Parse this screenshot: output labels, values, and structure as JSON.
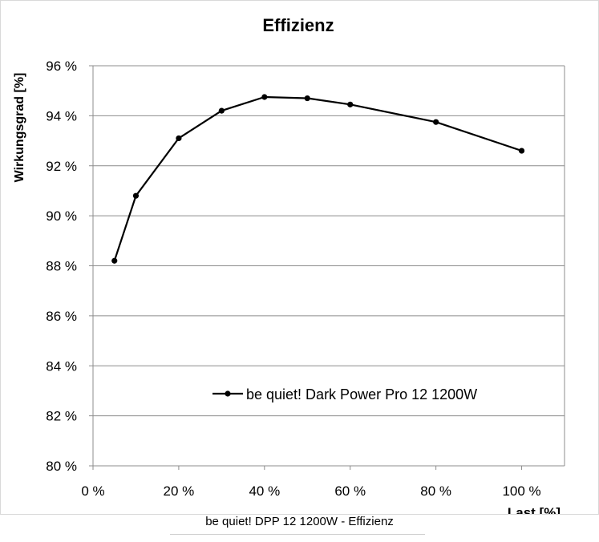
{
  "chart_data": {
    "type": "line",
    "title": "Effizienz",
    "xlabel": "Last [%]",
    "ylabel": "Wirkungsgrad [%]",
    "x_ticks": [
      "0 %",
      "20 %",
      "40 %",
      "60 %",
      "80 %",
      "100 %"
    ],
    "x_tick_values": [
      0,
      20,
      40,
      60,
      80,
      100
    ],
    "y_ticks": [
      "80 %",
      "82 %",
      "84 %",
      "86 %",
      "88 %",
      "90 %",
      "92 %",
      "94 %",
      "96 %"
    ],
    "y_tick_values": [
      80,
      82,
      84,
      86,
      88,
      90,
      92,
      94,
      96
    ],
    "xlim": [
      0,
      110
    ],
    "ylim": [
      80,
      96
    ],
    "grid": "horizontal",
    "legend_position": "lower-right",
    "series": [
      {
        "name": "be quiet! Dark Power Pro 12 1200W",
        "color": "#000000",
        "x": [
          5,
          10,
          20,
          30,
          40,
          50,
          60,
          80,
          100
        ],
        "y": [
          88.2,
          90.8,
          93.1,
          94.2,
          94.75,
          94.7,
          94.45,
          93.75,
          92.6
        ]
      }
    ]
  },
  "caption": "be quiet! DPP 12 1200W - Effizienz"
}
